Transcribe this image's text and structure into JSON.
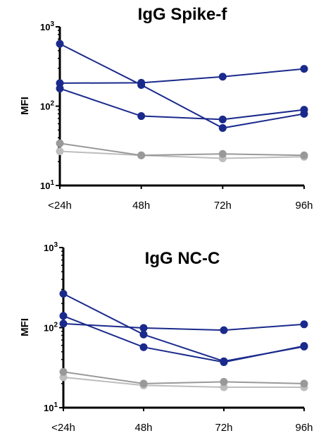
{
  "chart_data": [
    {
      "type": "line",
      "title": "IgG Spike-f",
      "xlabel": "",
      "ylabel": "MFI",
      "yscale": "log",
      "ylim": [
        10,
        1000
      ],
      "yticks": [
        {
          "base": "10",
          "exp": "1"
        },
        {
          "base": "10",
          "exp": "2"
        },
        {
          "base": "10",
          "exp": "3"
        }
      ],
      "categories": [
        "<24h",
        "48h",
        "72h",
        "96h"
      ],
      "grid": false,
      "legend": "none",
      "series": [
        {
          "values": [
            610,
            185,
            53,
            80
          ],
          "color": "#1a2a8c"
        },
        {
          "values": [
            195,
            197,
            235,
            295
          ],
          "color": "#1a2a8c"
        },
        {
          "values": [
            167,
            75,
            68,
            90
          ],
          "color": "#1a2a8c"
        },
        {
          "values": [
            34,
            24,
            25,
            24
          ],
          "color": "#999999"
        },
        {
          "values": [
            27,
            24,
            22,
            23
          ],
          "color": "#bdbdbd"
        }
      ]
    },
    {
      "type": "line",
      "title": "IgG NC-C",
      "xlabel": "",
      "ylabel": "MFI",
      "yscale": "log",
      "ylim": [
        10,
        1000
      ],
      "yticks": [
        {
          "base": "10",
          "exp": "1"
        },
        {
          "base": "10",
          "exp": "2"
        },
        {
          "base": "10",
          "exp": "3"
        }
      ],
      "categories": [
        "<24h",
        "48h",
        "72h",
        "96h"
      ],
      "grid": false,
      "legend": "none",
      "series": [
        {
          "values": [
            265,
            82,
            38,
            58
          ],
          "color": "#1a2a8c"
        },
        {
          "values": [
            140,
            57,
            37,
            59
          ],
          "color": "#1a2a8c"
        },
        {
          "values": [
            112,
            99,
            93,
            110
          ],
          "color": "#1a2a8c"
        },
        {
          "values": [
            28,
            20,
            21,
            20
          ],
          "color": "#999999"
        },
        {
          "values": [
            24,
            19,
            18,
            18
          ],
          "color": "#bdbdbd"
        }
      ]
    }
  ]
}
